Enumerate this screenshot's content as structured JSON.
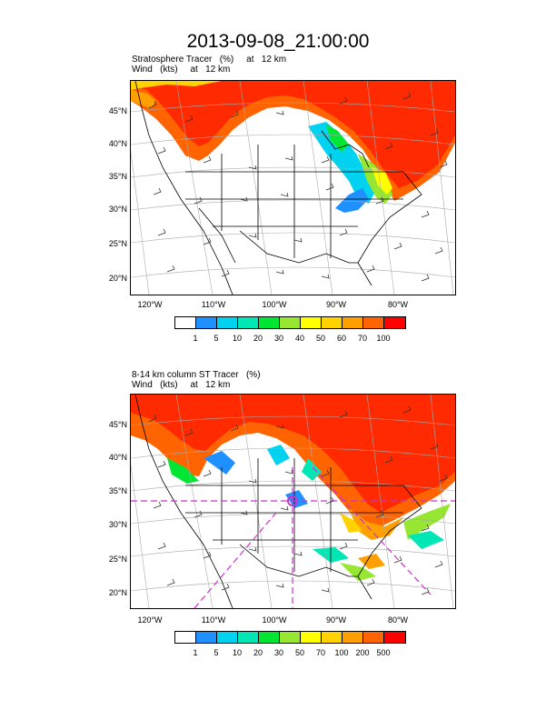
{
  "title": "2013-09-08_21:00:00",
  "panel1": {
    "sub1": "Stratosphere Tracer   (%)     at   12 km",
    "sub2": "Wind   (kts)     at   12 km",
    "colorbar": {
      "colors": [
        "#ffffff",
        "#1e90ff",
        "#00d2f0",
        "#00e6b4",
        "#00e632",
        "#96e632",
        "#ffff00",
        "#ffd200",
        "#ffa000",
        "#ff6400",
        "#ff0000"
      ],
      "labels": [
        "1",
        "5",
        "10",
        "20",
        "30",
        "40",
        "50",
        "60",
        "70",
        "100"
      ]
    }
  },
  "panel2": {
    "sub1": "8-14 km column ST Tracer   (%)",
    "sub2": "Wind   (kts)     at   12 km",
    "colorbar": {
      "colors": [
        "#ffffff",
        "#1e90ff",
        "#00d2f0",
        "#00e6b4",
        "#00e632",
        "#96e632",
        "#ffff00",
        "#ffd200",
        "#ffa000",
        "#ff6400",
        "#ff0000"
      ],
      "labels": [
        "1",
        "5",
        "10",
        "20",
        "30",
        "50",
        "70",
        "100",
        "200",
        "500"
      ]
    }
  },
  "lat_labels": [
    "45°N",
    "40°N",
    "35°N",
    "30°N",
    "25°N",
    "20°N"
  ],
  "lon_labels": [
    "120°W",
    "110°W",
    "100°W",
    "90°W",
    "80°W"
  ]
}
